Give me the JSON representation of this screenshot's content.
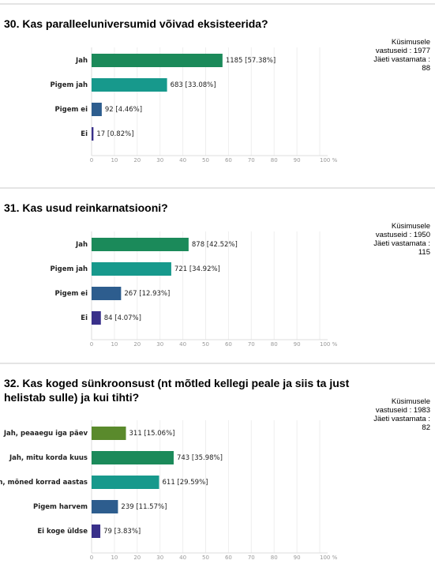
{
  "chart_data": [
    {
      "type": "bar",
      "orientation": "horizontal",
      "title": "30. Kas paralleeluniversumid võivad eksisteerida?",
      "notes": [
        "Küsimusele vastuseid : 1977",
        "Jäeti vastamata : 88"
      ],
      "categories": [
        "Jah",
        "Pigem jah",
        "Pigem ei",
        "Ei"
      ],
      "values": [
        57.38,
        33.08,
        4.46,
        0.82
      ],
      "value_labels": [
        "1185 [57.38%]",
        "683 [33.08%]",
        "92 [4.46%]",
        "17 [0.82%]"
      ],
      "colors": [
        "#1b8a5a",
        "#17998c",
        "#2d5d8e",
        "#39308a"
      ],
      "xlim": [
        0,
        100
      ],
      "xticks": [
        0,
        10,
        20,
        30,
        40,
        50,
        60,
        70,
        80,
        90,
        {
          "value": 100,
          "label": "100 %"
        }
      ],
      "grid": true
    },
    {
      "type": "bar",
      "orientation": "horizontal",
      "title": "31. Kas usud reinkarnatsiooni?",
      "notes": [
        "Küsimusele vastuseid : 1950",
        "Jäeti vastamata : 115"
      ],
      "categories": [
        "Jah",
        "Pigem jah",
        "Pigem ei",
        "Ei"
      ],
      "values": [
        42.52,
        34.92,
        12.93,
        4.07
      ],
      "value_labels": [
        "878 [42.52%]",
        "721 [34.92%]",
        "267 [12.93%]",
        "84 [4.07%]"
      ],
      "colors": [
        "#1b8a5a",
        "#17998c",
        "#2d5d8e",
        "#39308a"
      ],
      "xlim": [
        0,
        100
      ],
      "xticks": [
        0,
        10,
        20,
        30,
        40,
        50,
        60,
        70,
        80,
        90,
        {
          "value": 100,
          "label": "100 %"
        }
      ],
      "grid": true
    },
    {
      "type": "bar",
      "orientation": "horizontal",
      "title": "32. Kas koged sünkroonsust (nt mõtled kellegi peale ja siis ta just helistab sulle) ja kui tihti?",
      "notes": [
        "Küsimusele vastuseid : 1983",
        "Jäeti vastamata : 82"
      ],
      "categories": [
        "Jah, peaaegu iga päev",
        "Jah, mitu korda kuus",
        "Jah, mõned korrad aastas",
        "Pigem harvem",
        "Ei koge üldse"
      ],
      "values": [
        15.06,
        35.98,
        29.59,
        11.57,
        3.83
      ],
      "value_labels": [
        "311 [15.06%]",
        "743 [35.98%]",
        "611 [29.59%]",
        "239 [11.57%]",
        "79 [3.83%]"
      ],
      "colors": [
        "#5a8a2c",
        "#1b8a5a",
        "#17998c",
        "#2d5d8e",
        "#39308a"
      ],
      "xlim": [
        0,
        100
      ],
      "xticks": [
        0,
        10,
        20,
        30,
        40,
        50,
        60,
        70,
        80,
        90,
        {
          "value": 100,
          "label": "100 %"
        }
      ],
      "grid": true
    }
  ]
}
